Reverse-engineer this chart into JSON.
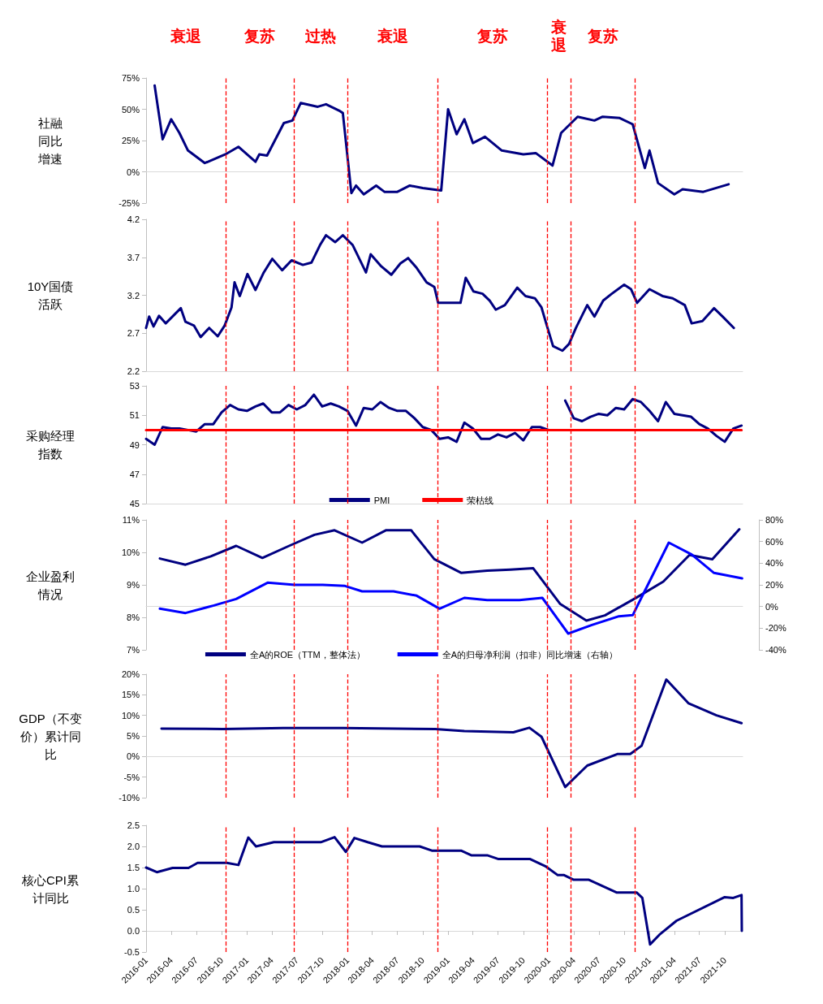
{
  "chart_data": [
    {
      "type": "line",
      "ylabel": "社融同比增速",
      "xlim": [
        "2016-01",
        "2021-12-05"
      ],
      "ylim": [
        -25,
        75
      ],
      "yticks": [
        {
          "value": -25,
          "label": "-25%"
        },
        {
          "value": 0,
          "label": "0%"
        },
        {
          "value": 25,
          "label": "25%"
        },
        {
          "value": 50,
          "label": "50%"
        },
        {
          "value": 75,
          "label": "75%"
        }
      ],
      "tick_labels": "y",
      "series": [
        {
          "color": "#000080",
          "x": [
            "2016-02-01",
            "2016-03-01",
            "2016-04-01",
            "2016-05-01",
            "2016-06-01",
            "2016-08-01",
            "2016-10-15",
            "2016-12-01",
            "2017-02-01",
            "2017-02-15",
            "2017-03-15",
            "2017-05-15",
            "2017-06-15",
            "2017-07-15",
            "2017-09-15",
            "2017-10-15",
            "2017-12-01",
            "2017-12-15",
            "2018-01-15",
            "2018-02-01",
            "2018-03-01",
            "2018-04-15",
            "2018-05-15",
            "2018-07-01",
            "2018-08-15",
            "2018-10-01",
            "2018-12-07",
            "2019-01-01",
            "2019-02-01",
            "2019-03-01",
            "2019-04-01",
            "2019-05-15",
            "2019-07-15",
            "2019-10-01",
            "2019-11-15",
            "2020-01-15",
            "2020-02-15",
            "2020-04-15",
            "2020-06-15",
            "2020-07-15",
            "2020-09-15",
            "2020-11-01",
            "2020-12-15",
            "2021-01-01",
            "2021-02-01",
            "2021-04-01",
            "2021-05-01",
            "2021-07-15",
            "2021-10-15"
          ],
          "values": [
            69,
            26,
            42,
            31,
            17,
            7,
            14,
            20,
            8,
            14,
            13,
            39,
            41,
            55,
            52,
            54,
            49,
            47,
            -17,
            -11,
            -18,
            -11,
            -16,
            -16,
            -11,
            -13,
            -15,
            50,
            30,
            42,
            23,
            28,
            17,
            14,
            15,
            5,
            31,
            44,
            41,
            44,
            43,
            38,
            3,
            17,
            -9,
            -18,
            -14,
            -16,
            -10
          ]
        }
      ],
      "ref_lines": [
        {
          "axis": "x",
          "value": "2016-10-15",
          "color": "#ff0000",
          "line_style": "dashed"
        },
        {
          "axis": "x",
          "value": "2017-06-20",
          "color": "#ff0000",
          "line_style": "dashed"
        },
        {
          "axis": "x",
          "value": "2018-01-01",
          "color": "#ff0000",
          "line_style": "dashed"
        },
        {
          "axis": "x",
          "value": "2018-11-25",
          "color": "#ff0000",
          "line_style": "dashed"
        },
        {
          "axis": "x",
          "value": "2019-12-28",
          "color": "#ff0000",
          "line_style": "dashed"
        },
        {
          "axis": "x",
          "value": "2020-03-20",
          "color": "#ff0000",
          "line_style": "dashed"
        },
        {
          "axis": "x",
          "value": "2020-11-10",
          "color": "#ff0000",
          "line_style": "dashed"
        }
      ],
      "annotations": [
        "衰退",
        "复苏",
        "过热",
        "衰退",
        "复苏",
        "衰退",
        "复苏"
      ]
    },
    {
      "type": "line",
      "ylabel": "10Y国债活跃",
      "xlim": [
        "2016-01",
        "2021-12-05"
      ],
      "ylim": [
        2.2,
        4.2
      ],
      "yticks": [
        2.2,
        2.7,
        3.2,
        3.7,
        4.2
      ],
      "tick_labels": "y",
      "series": [
        {
          "color": "#000080",
          "x": [
            "2016-01-01",
            "2016-01-12",
            "2016-01-28",
            "2016-02-17",
            "2016-03-12",
            "2016-04-06",
            "2016-05-06",
            "2016-05-23",
            "2016-06-23",
            "2016-07-17",
            "2016-08-17",
            "2016-09-17",
            "2016-10-12",
            "2016-11-06",
            "2016-11-17",
            "2016-12-06",
            "2017-01-03",
            "2017-02-01",
            "2017-03-03",
            "2017-04-03",
            "2017-05-09",
            "2017-06-12",
            "2017-07-23",
            "2017-08-23",
            "2017-09-23",
            "2017-10-15",
            "2017-11-17",
            "2017-12-15",
            "2018-01-20",
            "2018-03-09",
            "2018-03-26",
            "2018-05-01",
            "2018-06-09",
            "2018-07-12",
            "2018-08-09",
            "2018-09-09",
            "2018-10-15",
            "2018-11-12",
            "2018-11-26",
            "2019-01-03",
            "2019-02-15",
            "2019-03-06",
            "2019-04-03",
            "2019-05-06",
            "2019-06-01",
            "2019-06-23",
            "2019-07-26",
            "2019-09-09",
            "2019-10-09",
            "2019-11-12",
            "2019-12-06",
            "2019-12-23",
            "2020-01-17",
            "2020-02-20",
            "2020-03-15",
            "2020-04-09",
            "2020-05-20",
            "2020-06-15",
            "2020-07-17",
            "2020-08-17",
            "2020-10-01",
            "2020-10-26",
            "2020-11-17",
            "2021-01-01",
            "2021-02-17",
            "2021-03-26",
            "2021-05-09",
            "2021-06-03",
            "2021-07-12",
            "2021-08-23",
            "2021-09-26",
            "2021-11-03"
          ],
          "values": [
            2.77,
            2.92,
            2.79,
            2.93,
            2.83,
            2.92,
            3.03,
            2.85,
            2.8,
            2.65,
            2.77,
            2.66,
            2.8,
            3.04,
            3.37,
            3.19,
            3.48,
            3.27,
            3.5,
            3.68,
            3.53,
            3.66,
            3.6,
            3.63,
            3.86,
            3.99,
            3.9,
            3.99,
            3.86,
            3.5,
            3.74,
            3.59,
            3.47,
            3.62,
            3.69,
            3.56,
            3.37,
            3.31,
            3.1,
            3.1,
            3.1,
            3.43,
            3.25,
            3.22,
            3.13,
            3.01,
            3.07,
            3.3,
            3.19,
            3.16,
            3.04,
            2.83,
            2.53,
            2.47,
            2.56,
            2.77,
            3.07,
            2.92,
            3.13,
            3.22,
            3.34,
            3.28,
            3.1,
            3.28,
            3.19,
            3.16,
            3.07,
            2.83,
            2.86,
            3.03,
            2.91,
            2.77
          ]
        }
      ],
      "ref_lines": [
        {
          "axis": "x",
          "value": "2016-10-15",
          "color": "#ff0000",
          "line_style": "dashed"
        },
        {
          "axis": "x",
          "value": "2017-06-20",
          "color": "#ff0000",
          "line_style": "dashed"
        },
        {
          "axis": "x",
          "value": "2018-01-01",
          "color": "#ff0000",
          "line_style": "dashed"
        },
        {
          "axis": "x",
          "value": "2018-11-25",
          "color": "#ff0000",
          "line_style": "dashed"
        },
        {
          "axis": "x",
          "value": "2019-12-28",
          "color": "#ff0000",
          "line_style": "dashed"
        },
        {
          "axis": "x",
          "value": "2020-03-20",
          "color": "#ff0000",
          "line_style": "dashed"
        },
        {
          "axis": "x",
          "value": "2020-11-10",
          "color": "#ff0000",
          "line_style": "dashed"
        }
      ]
    },
    {
      "type": "line",
      "ylabel": "采购经理指数",
      "xlim": [
        "2016-01",
        "2021-12-05"
      ],
      "ylim": [
        45,
        53
      ],
      "yticks": [
        45,
        47,
        49,
        51,
        53
      ],
      "tick_labels": "y",
      "legend": "bottom",
      "series": [
        {
          "name": "PMI",
          "color": "#000080",
          "x": [
            "2016-01",
            "2016-02",
            "2016-03",
            "2016-04",
            "2016-05",
            "2016-06",
            "2016-07",
            "2016-08",
            "2016-09",
            "2016-10",
            "2016-11",
            "2016-12",
            "2017-01",
            "2017-02",
            "2017-03",
            "2017-04",
            "2017-05",
            "2017-06",
            "2017-07",
            "2017-08",
            "2017-09",
            "2017-10",
            "2017-11",
            "2017-12",
            "2018-01",
            "2018-02",
            "2018-03",
            "2018-04",
            "2018-05",
            "2018-06",
            "2018-07",
            "2018-08",
            "2018-09",
            "2018-10",
            "2018-11",
            "2018-12",
            "2019-01",
            "2019-02",
            "2019-03",
            "2019-04",
            "2019-05",
            "2019-06",
            "2019-07",
            "2019-08",
            "2019-09",
            "2019-10",
            "2019-11",
            "2019-12",
            "2020-01",
            "2020-02",
            "2020-03",
            "2020-04",
            "2020-05",
            "2020-06",
            "2020-07",
            "2020-08",
            "2020-09",
            "2020-10",
            "2020-11",
            "2020-12",
            "2021-01",
            "2021-02",
            "2021-03",
            "2021-04",
            "2021-05",
            "2021-06",
            "2021-07",
            "2021-08",
            "2021-09",
            "2021-10",
            "2021-11",
            "2021-12"
          ],
          "values": [
            49.4,
            49.0,
            50.2,
            50.1,
            50.1,
            50.0,
            49.9,
            50.4,
            50.4,
            51.2,
            51.7,
            51.4,
            51.3,
            51.6,
            51.8,
            51.2,
            51.2,
            51.7,
            51.4,
            51.7,
            52.4,
            51.6,
            51.8,
            51.6,
            51.3,
            50.3,
            51.5,
            51.4,
            51.9,
            51.5,
            51.3,
            51.3,
            50.8,
            50.2,
            50.0,
            49.4,
            49.5,
            49.2,
            50.5,
            50.1,
            49.4,
            49.4,
            49.7,
            49.5,
            49.8,
            49.3,
            50.2,
            50.2,
            50.0,
            null,
            52.0,
            50.8,
            50.6,
            50.9,
            51.1,
            51.0,
            51.5,
            51.4,
            52.1,
            51.9,
            51.3,
            50.6,
            51.9,
            51.1,
            51.0,
            50.9,
            50.4,
            50.1,
            49.6,
            49.2,
            50.1,
            50.3
          ]
        },
        {
          "name": "荣枯线",
          "color": "#ff0000",
          "x": [
            "2016-01",
            "2021-12"
          ],
          "values": [
            50,
            50
          ]
        }
      ],
      "ref_lines": [
        {
          "axis": "x",
          "value": "2016-10-15",
          "color": "#ff0000",
          "line_style": "dashed"
        },
        {
          "axis": "x",
          "value": "2017-06-20",
          "color": "#ff0000",
          "line_style": "dashed"
        },
        {
          "axis": "x",
          "value": "2018-01-01",
          "color": "#ff0000",
          "line_style": "dashed"
        },
        {
          "axis": "x",
          "value": "2018-11-25",
          "color": "#ff0000",
          "line_style": "dashed"
        },
        {
          "axis": "x",
          "value": "2019-12-28",
          "color": "#ff0000",
          "line_style": "dashed"
        },
        {
          "axis": "x",
          "value": "2020-03-20",
          "color": "#ff0000",
          "line_style": "dashed"
        },
        {
          "axis": "x",
          "value": "2020-11-10",
          "color": "#ff0000",
          "line_style": "dashed"
        }
      ]
    },
    {
      "type": "line",
      "ylabel": "企业盈利情况",
      "xlim": [
        "2016-01",
        "2021-12-05"
      ],
      "ylim": [
        7,
        11
      ],
      "yticks": [
        {
          "value": 7,
          "label": "7%"
        },
        {
          "value": 8,
          "label": "8%"
        },
        {
          "value": 9,
          "label": "9%"
        },
        {
          "value": 10,
          "label": "10%"
        },
        {
          "value": 11,
          "label": "11%"
        }
      ],
      "y2lim": [
        -40,
        80
      ],
      "y2ticks": [
        {
          "value": -40,
          "label": "-40%"
        },
        {
          "value": -20,
          "label": "-20%"
        },
        {
          "value": 0,
          "label": "0%"
        },
        {
          "value": 20,
          "label": "20%"
        },
        {
          "value": 40,
          "label": "40%"
        },
        {
          "value": 60,
          "label": "60%"
        },
        {
          "value": 80,
          "label": "80%"
        }
      ],
      "tick_labels": "y",
      "legend": "bottom",
      "series": [
        {
          "name": "全A的ROE（TTM，整体法）",
          "color": "#000080",
          "x": [
            "2016-02-20",
            "2016-05-23",
            "2016-08-23",
            "2016-11-23",
            "2017-02-26",
            "2017-06-03",
            "2017-09-03",
            "2017-11-15",
            "2018-02-23",
            "2018-05-20",
            "2018-08-20",
            "2018-11-12",
            "2019-02-17",
            "2019-05-23",
            "2019-08-15",
            "2019-11-06",
            "2020-02-12",
            "2020-05-17",
            "2020-07-23",
            "2020-11-15",
            "2021-02-20",
            "2021-05-26",
            "2021-08-17",
            "2021-11-23"
          ],
          "values": [
            9.81,
            9.62,
            9.88,
            10.2,
            9.83,
            10.2,
            10.54,
            10.68,
            10.3,
            10.68,
            10.68,
            9.79,
            9.37,
            9.44,
            9.47,
            9.51,
            8.41,
            7.9,
            8.06,
            8.61,
            9.1,
            9.92,
            9.79,
            10.71
          ]
        },
        {
          "name": "全A的归母净利润（扣非）同比增速（右轴）",
          "color": "#0000ff",
          "axis": "y2",
          "x": [
            "2016-02-20",
            "2016-05-23",
            "2016-09-03",
            "2016-11-23",
            "2017-03-17",
            "2017-06-23",
            "2017-10-03",
            "2017-12-23",
            "2018-02-23",
            "2018-06-17",
            "2018-09-09",
            "2018-12-01",
            "2019-03-01",
            "2019-05-23",
            "2019-09-17",
            "2019-12-09",
            "2020-03-12",
            "2020-06-06",
            "2020-09-12",
            "2020-11-01",
            "2020-12-20",
            "2021-03-12",
            "2021-06-03",
            "2021-08-23",
            "2021-12-03"
          ],
          "values": [
            -2,
            -6,
            1,
            7,
            22,
            20,
            20,
            19,
            14,
            14,
            10,
            -2,
            8,
            6,
            6,
            8,
            -25,
            -17,
            -9,
            -8,
            17,
            59,
            48,
            31,
            26
          ]
        }
      ],
      "ref_lines": [
        {
          "axis": "x",
          "value": "2016-10-15",
          "color": "#ff0000",
          "line_style": "dashed"
        },
        {
          "axis": "x",
          "value": "2017-06-20",
          "color": "#ff0000",
          "line_style": "dashed"
        },
        {
          "axis": "x",
          "value": "2018-01-01",
          "color": "#ff0000",
          "line_style": "dashed"
        },
        {
          "axis": "x",
          "value": "2018-11-25",
          "color": "#ff0000",
          "line_style": "dashed"
        },
        {
          "axis": "x",
          "value": "2019-12-28",
          "color": "#ff0000",
          "line_style": "dashed"
        },
        {
          "axis": "x",
          "value": "2020-03-20",
          "color": "#ff0000",
          "line_style": "dashed"
        },
        {
          "axis": "x",
          "value": "2020-11-10",
          "color": "#ff0000",
          "line_style": "dashed"
        }
      ]
    },
    {
      "type": "line",
      "ylabel": "GDP（不变价）累计同比",
      "xlim": [
        "2016-01",
        "2021-12-05"
      ],
      "ylim": [
        -10,
        20
      ],
      "yticks": [
        {
          "value": -10,
          "label": "-10%"
        },
        {
          "value": -5,
          "label": "-5%"
        },
        {
          "value": 0,
          "label": "0%"
        },
        {
          "value": 5,
          "label": "5%"
        },
        {
          "value": 10,
          "label": "10%"
        },
        {
          "value": 15,
          "label": "15%"
        },
        {
          "value": 20,
          "label": "20%"
        }
      ],
      "tick_labels": "y",
      "series": [
        {
          "color": "#000080",
          "x": [
            "2016-02-26",
            "2016-10-06",
            "2017-05-12",
            "2017-12-15",
            "2018-11-15",
            "2019-03-01",
            "2019-08-26",
            "2019-10-23",
            "2019-12-06",
            "2020-03-01",
            "2020-05-20",
            "2020-09-06",
            "2020-10-23",
            "2020-12-03",
            "2021-03-03",
            "2021-05-23",
            "2021-09-01",
            "2021-12-01"
          ],
          "values": [
            6.8,
            6.7,
            6.9,
            6.9,
            6.7,
            6.2,
            5.9,
            7.0,
            4.8,
            -7.4,
            -2.2,
            0.6,
            0.6,
            2.6,
            18.7,
            12.9,
            10.0,
            8.1
          ]
        }
      ],
      "ref_lines": [
        {
          "axis": "x",
          "value": "2016-10-15",
          "color": "#ff0000",
          "line_style": "dashed"
        },
        {
          "axis": "x",
          "value": "2017-06-20",
          "color": "#ff0000",
          "line_style": "dashed"
        },
        {
          "axis": "x",
          "value": "2018-01-01",
          "color": "#ff0000",
          "line_style": "dashed"
        },
        {
          "axis": "x",
          "value": "2018-11-25",
          "color": "#ff0000",
          "line_style": "dashed"
        },
        {
          "axis": "x",
          "value": "2019-12-28",
          "color": "#ff0000",
          "line_style": "dashed"
        },
        {
          "axis": "x",
          "value": "2020-03-20",
          "color": "#ff0000",
          "line_style": "dashed"
        },
        {
          "axis": "x",
          "value": "2020-11-10",
          "color": "#ff0000",
          "line_style": "dashed"
        }
      ]
    },
    {
      "type": "line",
      "ylabel": "核心CPI累计同比",
      "xlim": [
        "2016-01",
        "2021-12-05"
      ],
      "ylim": [
        -0.5,
        2.5
      ],
      "yticks": [
        -0.5,
        {
          "value": 0,
          "label": "0.0"
        },
        0.5,
        {
          "value": 1,
          "label": "1.0"
        },
        1.5,
        {
          "value": 2,
          "label": "2.0"
        },
        2.5
      ],
      "xticks": [
        "2016-01",
        "2016-04",
        "2016-07",
        "2016-10",
        "2017-01",
        "2017-04",
        "2017-07",
        "2017-10",
        "2018-01",
        "2018-04",
        "2018-07",
        "2018-10",
        "2019-01",
        "2019-04",
        "2019-07",
        "2019-10",
        "2020-01",
        "2020-04",
        "2020-07",
        "2020-10",
        "2021-01",
        "2021-04",
        "2021-07",
        "2021-10"
      ],
      "series": [
        {
          "color": "#000080",
          "x": [
            "2016-01-01",
            "2016-02-09",
            "2016-04-06",
            "2016-06-03",
            "2016-07-06",
            "2016-10-20",
            "2016-12-01",
            "2017-01-06",
            "2017-02-03",
            "2017-04-09",
            "2017-09-26",
            "2017-11-15",
            "2017-12-26",
            "2018-01-26",
            "2018-03-15",
            "2018-05-06",
            "2018-09-20",
            "2018-11-03",
            "2019-02-17",
            "2019-03-26",
            "2019-05-23",
            "2019-07-03",
            "2019-10-26",
            "2019-12-23",
            "2020-02-03",
            "2020-02-26",
            "2020-04-01",
            "2020-05-26",
            "2020-09-03",
            "2020-11-15",
            "2020-12-06",
            "2021-01-03",
            "2021-02-06",
            "2021-04-09",
            "2021-10-01",
            "2021-11-01",
            "2021-12-01",
            "2021-12-02"
          ],
          "values": [
            1.5,
            1.39,
            1.49,
            1.49,
            1.61,
            1.61,
            1.56,
            2.21,
            2.0,
            2.1,
            2.1,
            2.22,
            1.87,
            2.2,
            2.1,
            2.0,
            2.0,
            1.9,
            1.9,
            1.79,
            1.79,
            1.7,
            1.7,
            1.52,
            1.32,
            1.32,
            1.21,
            1.21,
            0.91,
            0.91,
            0.78,
            -0.32,
            -0.09,
            0.24,
            0.8,
            0.78,
            0.85,
            0.0
          ]
        }
      ],
      "ref_lines": [
        {
          "axis": "x",
          "value": "2016-10-15",
          "color": "#ff0000",
          "line_style": "dashed"
        },
        {
          "axis": "x",
          "value": "2017-06-20",
          "color": "#ff0000",
          "line_style": "dashed"
        },
        {
          "axis": "x",
          "value": "2018-01-01",
          "color": "#ff0000",
          "line_style": "dashed"
        },
        {
          "axis": "x",
          "value": "2018-11-25",
          "color": "#ff0000",
          "line_style": "dashed"
        },
        {
          "axis": "x",
          "value": "2019-12-28",
          "color": "#ff0000",
          "line_style": "dashed"
        },
        {
          "axis": "x",
          "value": "2020-03-20",
          "color": "#ff0000",
          "line_style": "dashed"
        },
        {
          "axis": "x",
          "value": "2020-11-10",
          "color": "#ff0000",
          "line_style": "dashed"
        }
      ]
    }
  ]
}
